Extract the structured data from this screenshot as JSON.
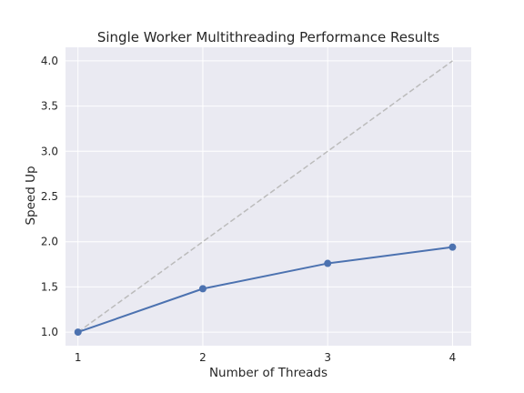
{
  "chart_data": {
    "type": "line",
    "title": "Single Worker Multithreading Performance Results",
    "xlabel": "Number of Threads",
    "ylabel": "Speed Up",
    "x": [
      1,
      2,
      3,
      4
    ],
    "xticks": [
      "1",
      "2",
      "3",
      "4"
    ],
    "yticks": [
      "1.0",
      "1.5",
      "2.0",
      "2.5",
      "3.0",
      "3.5",
      "4.0"
    ],
    "xlim": [
      0.9,
      4.15
    ],
    "ylim": [
      0.85,
      4.15
    ],
    "grid": true,
    "legend": "none",
    "series": [
      {
        "values": [
          1.0,
          1.48,
          1.76,
          1.94
        ],
        "color": "#4c72b0",
        "style": "solid",
        "marker": "circle"
      },
      {
        "values": [
          1.0,
          2.0,
          3.0,
          4.0
        ],
        "color": "#bbbbbb",
        "style": "dashed",
        "marker": "none"
      }
    ],
    "colors": {
      "plot_background": "#eaeaf2",
      "grid": "#ffffff",
      "text": "#262626"
    }
  }
}
